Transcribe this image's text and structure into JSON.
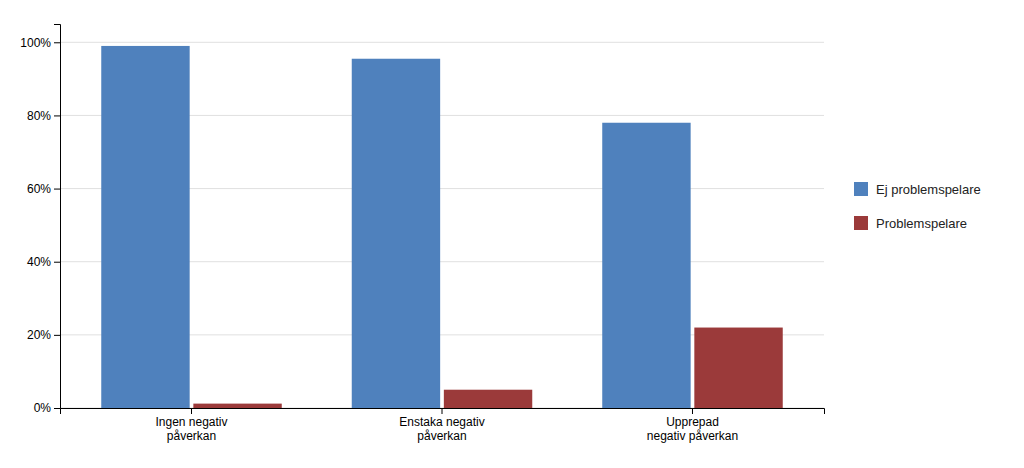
{
  "chart_data": {
    "type": "bar",
    "categories": [
      "Ingen negativ\npåverkan",
      "Enstaka negativ\npåverkan",
      "Upprepad\nnegativ påverkan"
    ],
    "series": [
      {
        "name": "Ej problemspelare",
        "color": "#4F81BD",
        "values": [
          0.99,
          0.955,
          0.78
        ]
      },
      {
        "name": "Problemspelare",
        "color": "#9B3A3A",
        "values": [
          0.012,
          0.05,
          0.22
        ]
      }
    ],
    "ylim": [
      0,
      1.05
    ],
    "yticks": [
      {
        "value": 0.0,
        "label": "0%"
      },
      {
        "value": 0.2,
        "label": "20%"
      },
      {
        "value": 0.4,
        "label": "40%"
      },
      {
        "value": 0.6,
        "label": "60%"
      },
      {
        "value": 0.8,
        "label": "80%"
      },
      {
        "value": 1.0,
        "label": "100%"
      }
    ],
    "grid": true,
    "legend": "right"
  }
}
